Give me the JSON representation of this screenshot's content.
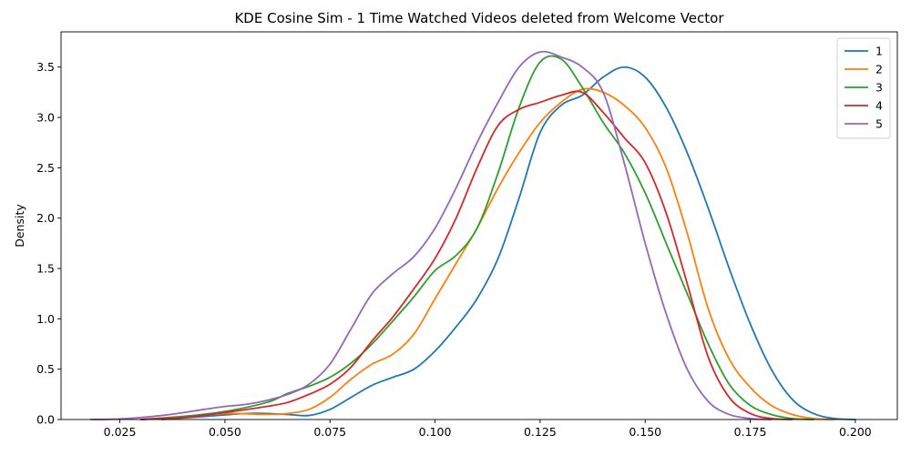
{
  "chart_data": {
    "type": "line",
    "title": "KDE Cosine Sim - 1 Time Watched Videos deleted from Welcome Vector",
    "xlabel": "",
    "ylabel": "Density",
    "xlim": [
      0.011,
      0.21
    ],
    "ylim": [
      0,
      3.85
    ],
    "xticks": [
      0.025,
      0.05,
      0.075,
      0.1,
      0.125,
      0.15,
      0.175,
      0.2
    ],
    "xtick_labels": [
      "0.025",
      "0.050",
      "0.075",
      "0.100",
      "0.125",
      "0.150",
      "0.175",
      "0.200"
    ],
    "yticks": [
      0,
      0.5,
      1,
      1.5,
      2,
      2.5,
      3,
      3.5
    ],
    "ytick_labels": [
      "0.0",
      "0.5",
      "1.0",
      "1.5",
      "2.0",
      "2.5",
      "3.0",
      "3.5"
    ],
    "grid": false,
    "legend_position": "top-right",
    "series": [
      {
        "name": "1",
        "color": "#1f77b4",
        "points": [
          [
            0.035,
            0.0
          ],
          [
            0.045,
            0.03
          ],
          [
            0.055,
            0.06
          ],
          [
            0.06,
            0.06
          ],
          [
            0.065,
            0.05
          ],
          [
            0.07,
            0.04
          ],
          [
            0.075,
            0.1
          ],
          [
            0.08,
            0.22
          ],
          [
            0.085,
            0.34
          ],
          [
            0.09,
            0.42
          ],
          [
            0.095,
            0.5
          ],
          [
            0.1,
            0.68
          ],
          [
            0.105,
            0.92
          ],
          [
            0.11,
            1.2
          ],
          [
            0.115,
            1.6
          ],
          [
            0.12,
            2.2
          ],
          [
            0.125,
            2.85
          ],
          [
            0.13,
            3.12
          ],
          [
            0.135,
            3.22
          ],
          [
            0.14,
            3.4
          ],
          [
            0.145,
            3.5
          ],
          [
            0.15,
            3.4
          ],
          [
            0.155,
            3.1
          ],
          [
            0.16,
            2.65
          ],
          [
            0.165,
            2.1
          ],
          [
            0.17,
            1.5
          ],
          [
            0.175,
            0.95
          ],
          [
            0.18,
            0.5
          ],
          [
            0.185,
            0.2
          ],
          [
            0.19,
            0.06
          ],
          [
            0.195,
            0.01
          ],
          [
            0.2,
            0.0
          ]
        ]
      },
      {
        "name": "2",
        "color": "#ff7f0e",
        "points": [
          [
            0.03,
            0.0
          ],
          [
            0.04,
            0.03
          ],
          [
            0.05,
            0.06
          ],
          [
            0.06,
            0.05
          ],
          [
            0.065,
            0.06
          ],
          [
            0.07,
            0.1
          ],
          [
            0.075,
            0.22
          ],
          [
            0.08,
            0.4
          ],
          [
            0.085,
            0.55
          ],
          [
            0.09,
            0.65
          ],
          [
            0.095,
            0.85
          ],
          [
            0.1,
            1.2
          ],
          [
            0.105,
            1.55
          ],
          [
            0.11,
            1.9
          ],
          [
            0.115,
            2.3
          ],
          [
            0.12,
            2.65
          ],
          [
            0.125,
            2.95
          ],
          [
            0.13,
            3.15
          ],
          [
            0.135,
            3.28
          ],
          [
            0.14,
            3.25
          ],
          [
            0.145,
            3.12
          ],
          [
            0.15,
            2.9
          ],
          [
            0.155,
            2.5
          ],
          [
            0.16,
            1.85
          ],
          [
            0.165,
            1.1
          ],
          [
            0.17,
            0.6
          ],
          [
            0.175,
            0.32
          ],
          [
            0.18,
            0.14
          ],
          [
            0.185,
            0.05
          ],
          [
            0.19,
            0.01
          ],
          [
            0.195,
            0.0
          ]
        ]
      },
      {
        "name": "3",
        "color": "#2ca02c",
        "points": [
          [
            0.03,
            0.0
          ],
          [
            0.04,
            0.03
          ],
          [
            0.05,
            0.08
          ],
          [
            0.06,
            0.17
          ],
          [
            0.065,
            0.26
          ],
          [
            0.07,
            0.33
          ],
          [
            0.075,
            0.42
          ],
          [
            0.08,
            0.56
          ],
          [
            0.085,
            0.75
          ],
          [
            0.09,
            0.98
          ],
          [
            0.095,
            1.22
          ],
          [
            0.1,
            1.48
          ],
          [
            0.105,
            1.63
          ],
          [
            0.11,
            1.9
          ],
          [
            0.115,
            2.45
          ],
          [
            0.12,
            3.1
          ],
          [
            0.125,
            3.55
          ],
          [
            0.13,
            3.58
          ],
          [
            0.135,
            3.3
          ],
          [
            0.14,
            2.95
          ],
          [
            0.145,
            2.65
          ],
          [
            0.15,
            2.25
          ],
          [
            0.155,
            1.75
          ],
          [
            0.16,
            1.25
          ],
          [
            0.165,
            0.75
          ],
          [
            0.17,
            0.35
          ],
          [
            0.175,
            0.14
          ],
          [
            0.18,
            0.05
          ],
          [
            0.185,
            0.01
          ],
          [
            0.19,
            0.0
          ]
        ]
      },
      {
        "name": "4",
        "color": "#d62728",
        "points": [
          [
            0.03,
            0.0
          ],
          [
            0.04,
            0.02
          ],
          [
            0.05,
            0.07
          ],
          [
            0.06,
            0.13
          ],
          [
            0.065,
            0.17
          ],
          [
            0.07,
            0.25
          ],
          [
            0.075,
            0.35
          ],
          [
            0.08,
            0.52
          ],
          [
            0.085,
            0.78
          ],
          [
            0.09,
            1.02
          ],
          [
            0.095,
            1.3
          ],
          [
            0.1,
            1.6
          ],
          [
            0.105,
            2.0
          ],
          [
            0.11,
            2.5
          ],
          [
            0.115,
            2.92
          ],
          [
            0.12,
            3.08
          ],
          [
            0.125,
            3.15
          ],
          [
            0.13,
            3.22
          ],
          [
            0.135,
            3.25
          ],
          [
            0.14,
            3.05
          ],
          [
            0.145,
            2.8
          ],
          [
            0.15,
            2.55
          ],
          [
            0.155,
            2.05
          ],
          [
            0.16,
            1.35
          ],
          [
            0.165,
            0.62
          ],
          [
            0.17,
            0.22
          ],
          [
            0.175,
            0.06
          ],
          [
            0.18,
            0.01
          ],
          [
            0.185,
            0.0
          ]
        ]
      },
      {
        "name": "5",
        "color": "#9467bd",
        "points": [
          [
            0.018,
            0.0
          ],
          [
            0.025,
            0.005
          ],
          [
            0.035,
            0.04
          ],
          [
            0.045,
            0.1
          ],
          [
            0.05,
            0.13
          ],
          [
            0.055,
            0.15
          ],
          [
            0.06,
            0.19
          ],
          [
            0.065,
            0.25
          ],
          [
            0.07,
            0.35
          ],
          [
            0.075,
            0.55
          ],
          [
            0.08,
            0.9
          ],
          [
            0.085,
            1.25
          ],
          [
            0.09,
            1.45
          ],
          [
            0.095,
            1.62
          ],
          [
            0.1,
            1.9
          ],
          [
            0.105,
            2.3
          ],
          [
            0.11,
            2.75
          ],
          [
            0.115,
            3.15
          ],
          [
            0.12,
            3.5
          ],
          [
            0.125,
            3.65
          ],
          [
            0.13,
            3.6
          ],
          [
            0.135,
            3.5
          ],
          [
            0.14,
            3.25
          ],
          [
            0.145,
            2.55
          ],
          [
            0.15,
            1.75
          ],
          [
            0.155,
            1.05
          ],
          [
            0.16,
            0.5
          ],
          [
            0.165,
            0.18
          ],
          [
            0.17,
            0.05
          ],
          [
            0.175,
            0.01
          ],
          [
            0.18,
            0.0
          ]
        ]
      }
    ]
  }
}
